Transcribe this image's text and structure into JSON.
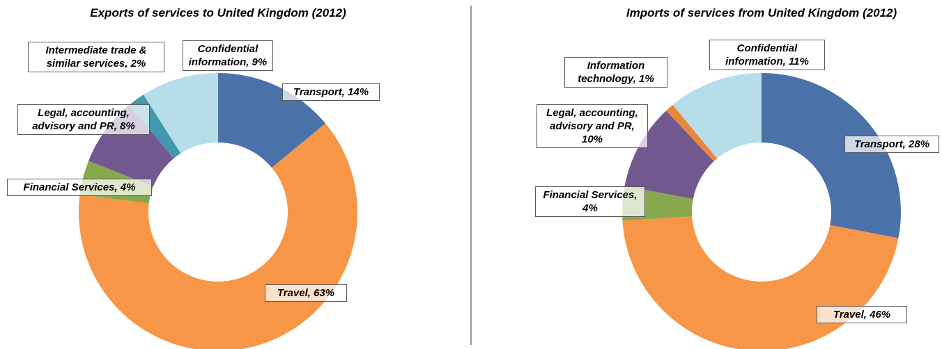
{
  "chart_data": [
    {
      "type": "donut",
      "title": "Exports of services to United Kingdom (2012)",
      "values": [
        14,
        63,
        4,
        8,
        2,
        9
      ],
      "value_labels": [
        "Transport, 14%",
        "Travel, 63%",
        "Financial Services, 4%",
        "Legal, accounting, advisory and PR, 8%",
        "Intermediate trade & similar services, 2%",
        "Confidential information, 9%"
      ],
      "colors": [
        "#4a72a8",
        "#f79646",
        "#88a84e",
        "#71588f",
        "#4198af",
        "#b7dde8"
      ]
    },
    {
      "type": "donut",
      "title": "Imports of services from United Kingdom (2012)",
      "values": [
        28,
        46,
        4,
        10,
        1,
        11
      ],
      "value_labels": [
        "Transport, 28%",
        "Travel, 46%",
        "Financial Services, 4%",
        "Legal, accounting, advisory and PR, 10%",
        "Information technology, 1%",
        "Confidential information, 11%"
      ],
      "colors": [
        "#4a72a8",
        "#f79646",
        "#88a84e",
        "#71588f",
        "#e8883a",
        "#b7dde8"
      ]
    }
  ]
}
